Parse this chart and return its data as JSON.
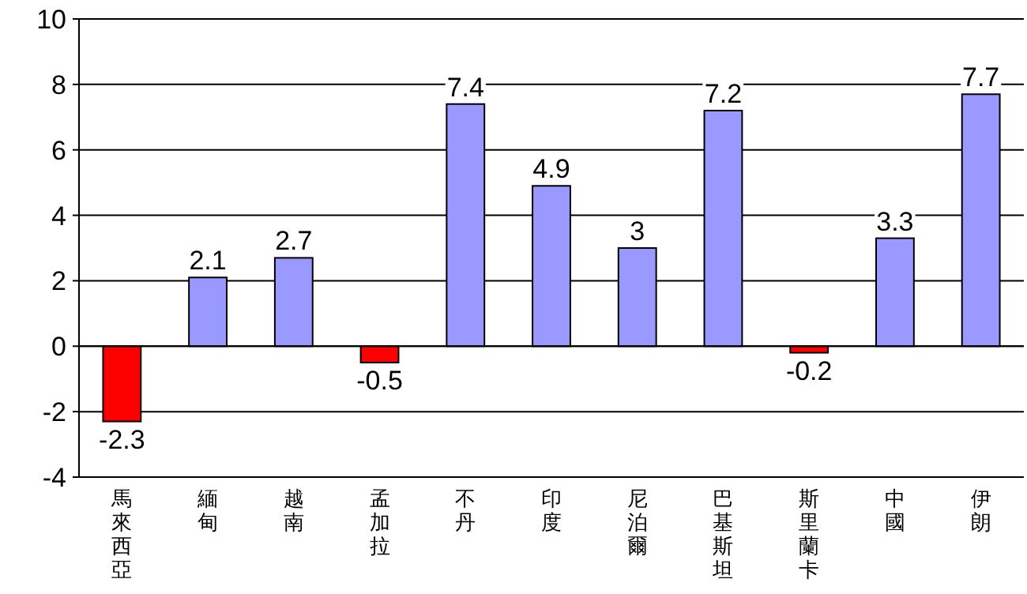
{
  "chart_data": {
    "type": "bar",
    "categories": [
      "馬來西亞",
      "緬甸",
      "越南",
      "孟加拉",
      "不丹",
      "印度",
      "尼泊爾",
      "巴基斯坦",
      "斯里蘭卡",
      "中國",
      "伊朗"
    ],
    "values": [
      -2.3,
      2.1,
      2.7,
      -0.5,
      7.4,
      4.9,
      3,
      7.2,
      -0.2,
      3.3,
      7.7
    ],
    "colors": [
      "#ff0000",
      "#9999ff",
      "#9999ff",
      "#ff0000",
      "#9999ff",
      "#9999ff",
      "#9999ff",
      "#9999ff",
      "#ff0000",
      "#9999ff",
      "#9999ff"
    ],
    "ylim": [
      -4,
      10
    ],
    "yticks": [
      -4,
      -2,
      0,
      2,
      4,
      6,
      8,
      10
    ],
    "grid": "y",
    "data_labels": true
  }
}
